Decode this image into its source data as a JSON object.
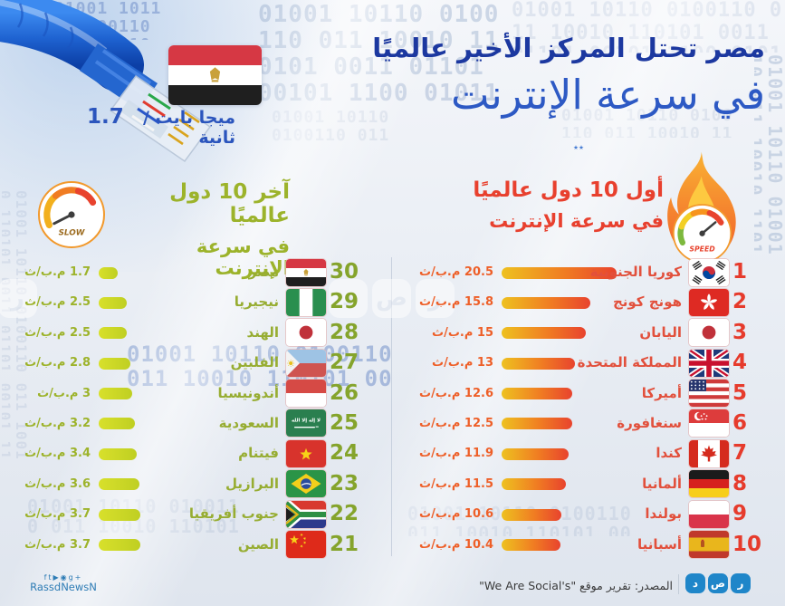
{
  "title": {
    "line1": "مصر تحتل المركز الأخير عالميًا",
    "line2": "في سرعة الإنترنت"
  },
  "egypt_callout": {
    "value": "1.7",
    "unit": "ميجا بايت / ثانية"
  },
  "fastest_header": {
    "line1": "أول 10 دول عالميًا",
    "line2": "في سرعة الإنترنت",
    "gauge_label": "SPEED"
  },
  "slowest_header": {
    "line1": "آخر 10 دول عالميًا",
    "line2": "في سرعة الإنترنت",
    "gauge_label": "SLOW"
  },
  "chart_data": [
    {
      "type": "bar",
      "title": "أول 10 دول عالميًا في سرعة الإنترنت",
      "unit": "م.ب/ث",
      "items": [
        {
          "rank": "1",
          "country": "كوريا الجنوبية",
          "flag": "south-korea",
          "value": 20.5,
          "value_label": "20.5 م.ب/ث"
        },
        {
          "rank": "2",
          "country": "هونج كونج",
          "flag": "hong-kong",
          "value": 15.8,
          "value_label": "15.8 م.ب/ث"
        },
        {
          "rank": "3",
          "country": "اليابان",
          "flag": "japan",
          "value": 15,
          "value_label": "15 م.ب/ث"
        },
        {
          "rank": "4",
          "country": "المملكة المتحدة",
          "flag": "united-kingdom",
          "value": 13,
          "value_label": "13 م.ب/ث"
        },
        {
          "rank": "5",
          "country": "أميركا",
          "flag": "usa",
          "value": 12.6,
          "value_label": "12.6 م.ب/ث"
        },
        {
          "rank": "6",
          "country": "سنغافورة",
          "flag": "singapore",
          "value": 12.5,
          "value_label": "12.5 م.ب/ث"
        },
        {
          "rank": "7",
          "country": "كندا",
          "flag": "canada",
          "value": 11.9,
          "value_label": "11.9 م.ب/ث"
        },
        {
          "rank": "8",
          "country": "ألمانيا",
          "flag": "germany",
          "value": 11.5,
          "value_label": "11.5 م.ب/ث"
        },
        {
          "rank": "9",
          "country": "بولندا",
          "flag": "poland",
          "value": 10.6,
          "value_label": "10.6 م.ب/ث"
        },
        {
          "rank": "10",
          "country": "أسبانيا",
          "flag": "spain",
          "value": 10.4,
          "value_label": "10.4 م.ب/ث"
        }
      ]
    },
    {
      "type": "bar",
      "title": "آخر 10 دول عالميًا في سرعة الإنترنت",
      "unit": "م.ب/ث",
      "items": [
        {
          "rank": "30",
          "country": "مصر",
          "flag": "egypt",
          "value": 1.7,
          "value_label": "1.7 م.ب/ث"
        },
        {
          "rank": "29",
          "country": "نيجيريا",
          "flag": "nigeria",
          "value": 2.5,
          "value_label": "2.5 م.ب/ث"
        },
        {
          "rank": "28",
          "country": "الهند",
          "flag": "japan",
          "value": 2.5,
          "value_label": "2.5 م.ب/ث"
        },
        {
          "rank": "27",
          "country": "الفلبين",
          "flag": "philippines",
          "value": 2.8,
          "value_label": "2.8 م.ب/ث"
        },
        {
          "rank": "26",
          "country": "أندونيسيا",
          "flag": "indonesia",
          "value": 3,
          "value_label": "3 م.ب/ث"
        },
        {
          "rank": "25",
          "country": "السعودية",
          "flag": "saudi-arabia",
          "value": 3.2,
          "value_label": "3.2 م.ب/ث"
        },
        {
          "rank": "24",
          "country": "فيتنام",
          "flag": "vietnam",
          "value": 3.4,
          "value_label": "3.4 م.ب/ث"
        },
        {
          "rank": "23",
          "country": "البرازيل",
          "flag": "brazil",
          "value": 3.6,
          "value_label": "3.6 م.ب/ث"
        },
        {
          "rank": "22",
          "country": "جنوب أفريقيا",
          "flag": "south-africa",
          "value": 3.7,
          "value_label": "3.7 م.ب/ث"
        },
        {
          "rank": "21",
          "country": "الصين",
          "flag": "china",
          "value": 3.7,
          "value_label": "3.7 م.ب/ث"
        }
      ]
    }
  ],
  "footer": {
    "source": "المصدر: تقرير موقع \"We Are Social's\"",
    "logo_letters": [
      "د",
      "ص",
      "ر"
    ],
    "social_handle": "RassdNewsN",
    "social_icons": [
      "facebook-icon",
      "twitter-icon",
      "youtube-icon",
      "instagram-icon",
      "googleplus-icon"
    ]
  },
  "decoration": {
    "binary_pattern": "01001 10110 0100110 011 10010 110101 0011 01101 00101 1100 01011 0010 ",
    "sparkle": "٭٭"
  },
  "colors": {
    "title_blue": "#1c38a0",
    "subtitle_blue": "#2d59c4",
    "fast_red": "#e8402e",
    "slow_olive": "#9cb32b",
    "fast_bar_start": "#eec120",
    "fast_bar_end": "#e8432e",
    "slow_bar_start": "#d8e02b",
    "slow_bar_end": "#bfcf22",
    "logo_blue": "#1f86c9"
  }
}
